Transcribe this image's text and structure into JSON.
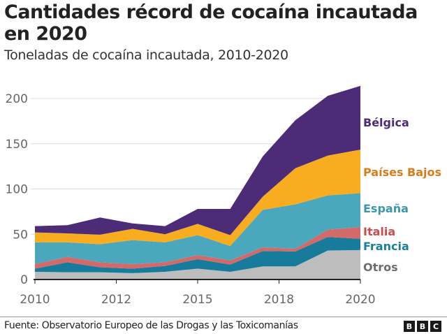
{
  "chart_data": {
    "type": "area",
    "stacked": true,
    "title": "Cantidades récord de cocaína incautada en 2020",
    "subtitle": "Toneladas de cocaína incautada, 2010-2020",
    "x": [
      2010,
      2011,
      2012,
      2013,
      2014,
      2015,
      2016,
      2017,
      2018,
      2019,
      2020
    ],
    "x_ticks": [
      {
        "value": 2010,
        "label": "2010"
      },
      {
        "value": 2012.5,
        "label": "2012"
      },
      {
        "value": 2015,
        "label": "2015"
      },
      {
        "value": 2017.5,
        "label": "2018"
      },
      {
        "value": 2020,
        "label": "2020"
      }
    ],
    "y_ticks": [
      0,
      50,
      100,
      150,
      200
    ],
    "ylim": [
      0,
      215
    ],
    "grid": true,
    "legend": "direct labels at right",
    "series": [
      {
        "name": "Otros",
        "color": "#bdbdbd",
        "label_color": "#6e6e6e",
        "values": [
          8.5,
          8,
          8,
          7,
          8.5,
          12,
          8.5,
          14.5,
          14.5,
          32,
          32.5
        ]
      },
      {
        "name": "Francia",
        "color": "#177b9c",
        "label_color": "#1a7f9e",
        "values": [
          3.5,
          11,
          5.5,
          5,
          6.5,
          10.5,
          8,
          17,
          16.5,
          15,
          12.5
        ]
      },
      {
        "name": "Italia",
        "color": "#d4696a",
        "label_color": "#cc4b4b",
        "values": [
          5,
          6,
          5.5,
          5,
          4,
          4.5,
          4.5,
          4,
          3,
          8,
          13
        ]
      },
      {
        "name": "España",
        "color": "#4ba8bc",
        "label_color": "#3d97ab",
        "values": [
          24,
          16,
          20,
          26.5,
          22,
          22,
          16,
          41.5,
          49,
          38,
          37.5
        ]
      },
      {
        "name": "Países Bajos",
        "color": "#f8ac20",
        "label_color": "#d87d1c",
        "values": [
          11,
          10,
          10.5,
          12.5,
          9,
          12.5,
          12,
          14.5,
          40,
          44,
          48
        ]
      },
      {
        "name": "Bélgica",
        "color": "#4c2b77",
        "label_color": "#4c2b77",
        "values": [
          7,
          9,
          19,
          6,
          9,
          16.5,
          29,
          44.5,
          53,
          66,
          70.5
        ]
      }
    ]
  },
  "header": {
    "title": "Cantidades récord de cocaína incautada en 2020",
    "subtitle": "Toneladas de cocaína incautada, 2010-2020"
  },
  "footer": {
    "source": "Fuente: Observatorio Europeo de las Drogas y las Toxicomanías",
    "logo": [
      "B",
      "B",
      "C"
    ]
  }
}
